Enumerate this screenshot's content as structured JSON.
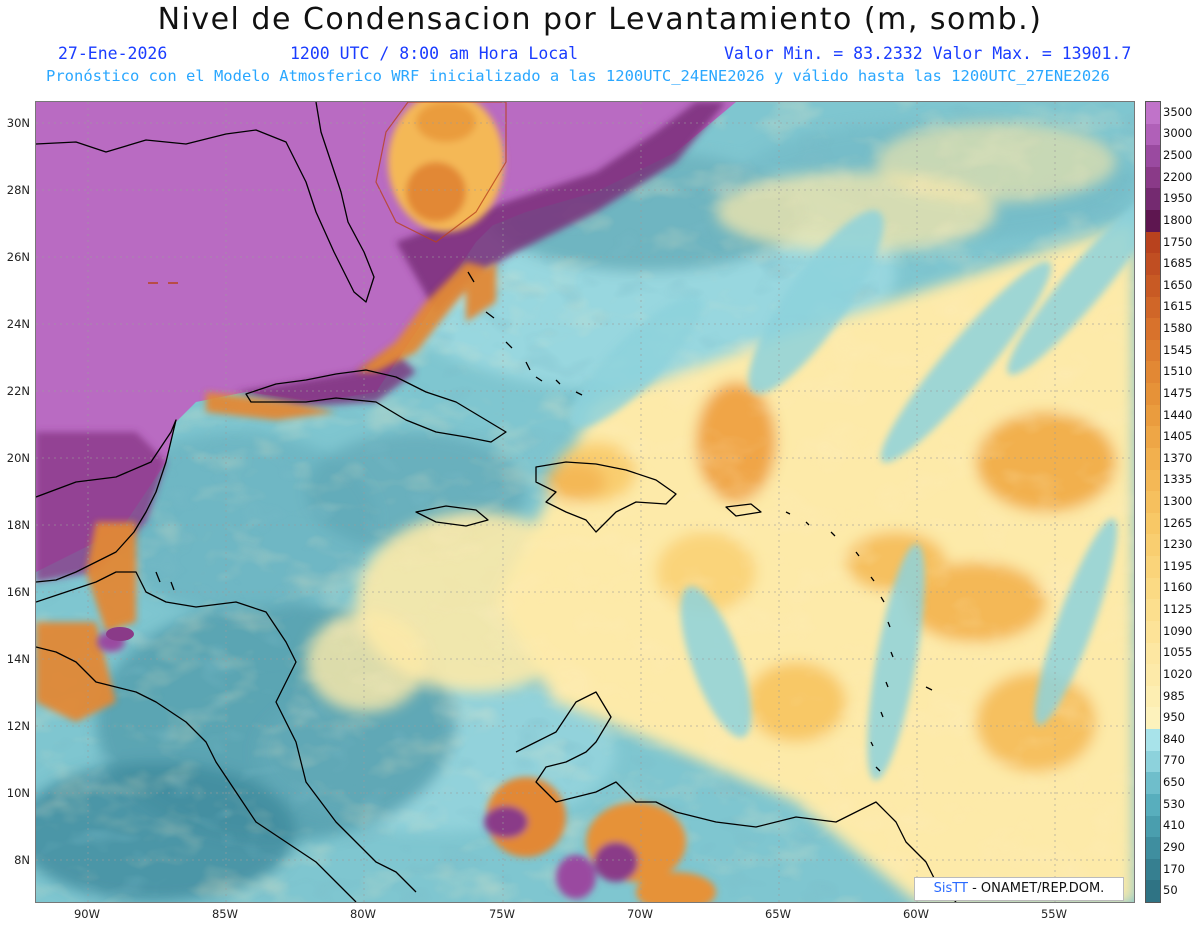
{
  "header": {
    "title": "Nivel de Condensacion por Levantamiento (m, somb.)",
    "date": "27-Ene-2026",
    "time": "1200 UTC / 8:00 am Hora Local",
    "minmax": "Valor Min. = 83.2332  Valor Max. = 13901.7",
    "forecast_note": "Pronóstico con el Modelo Atmosferico WRF inicializado a las 1200UTC_24ENE2026 y válido hasta las  1200UTC_27ENE2026"
  },
  "axes": {
    "lat_labels": [
      "30N",
      "28N",
      "26N",
      "24N",
      "22N",
      "20N",
      "18N",
      "16N",
      "14N",
      "12N",
      "10N",
      "8N"
    ],
    "lon_labels": [
      "90W",
      "85W",
      "80W",
      "75W",
      "70W",
      "65W",
      "60W",
      "55W"
    ]
  },
  "colorbar": {
    "labels": [
      "3500",
      "3000",
      "2500",
      "2200",
      "1950",
      "1800",
      "1750",
      "1685",
      "1650",
      "1615",
      "1580",
      "1545",
      "1510",
      "1475",
      "1440",
      "1405",
      "1370",
      "1335",
      "1300",
      "1265",
      "1230",
      "1195",
      "1160",
      "1125",
      "1090",
      "1055",
      "1020",
      "985",
      "950",
      "840",
      "770",
      "650",
      "530",
      "410",
      "290",
      "170",
      "50"
    ],
    "colors": [
      "#c073c9",
      "#b060b8",
      "#9a4aa0",
      "#8a3a88",
      "#742a70",
      "#5e1650",
      "#b8421e",
      "#c04e22",
      "#c85a24",
      "#d06628",
      "#d8722c",
      "#dd7d30",
      "#e28834",
      "#e69238",
      "#ea9c3e",
      "#eea646",
      "#f2b04e",
      "#f4b856",
      "#f6c05e",
      "#f8c866",
      "#f9ce70",
      "#fad47a",
      "#fbda84",
      "#fcdf8e",
      "#fde398",
      "#fde7a2",
      "#fdeaa9",
      "#fdeeb2",
      "#fdf2bc",
      "#a8e3ea",
      "#8dd2dc",
      "#6fbecb",
      "#58aebd",
      "#4a9eae",
      "#3f8e9f",
      "#367f90",
      "#2f7384"
    ]
  },
  "credit": {
    "logo_text": "SisTT",
    "org": " - ONAMET/REP.DOM."
  }
}
